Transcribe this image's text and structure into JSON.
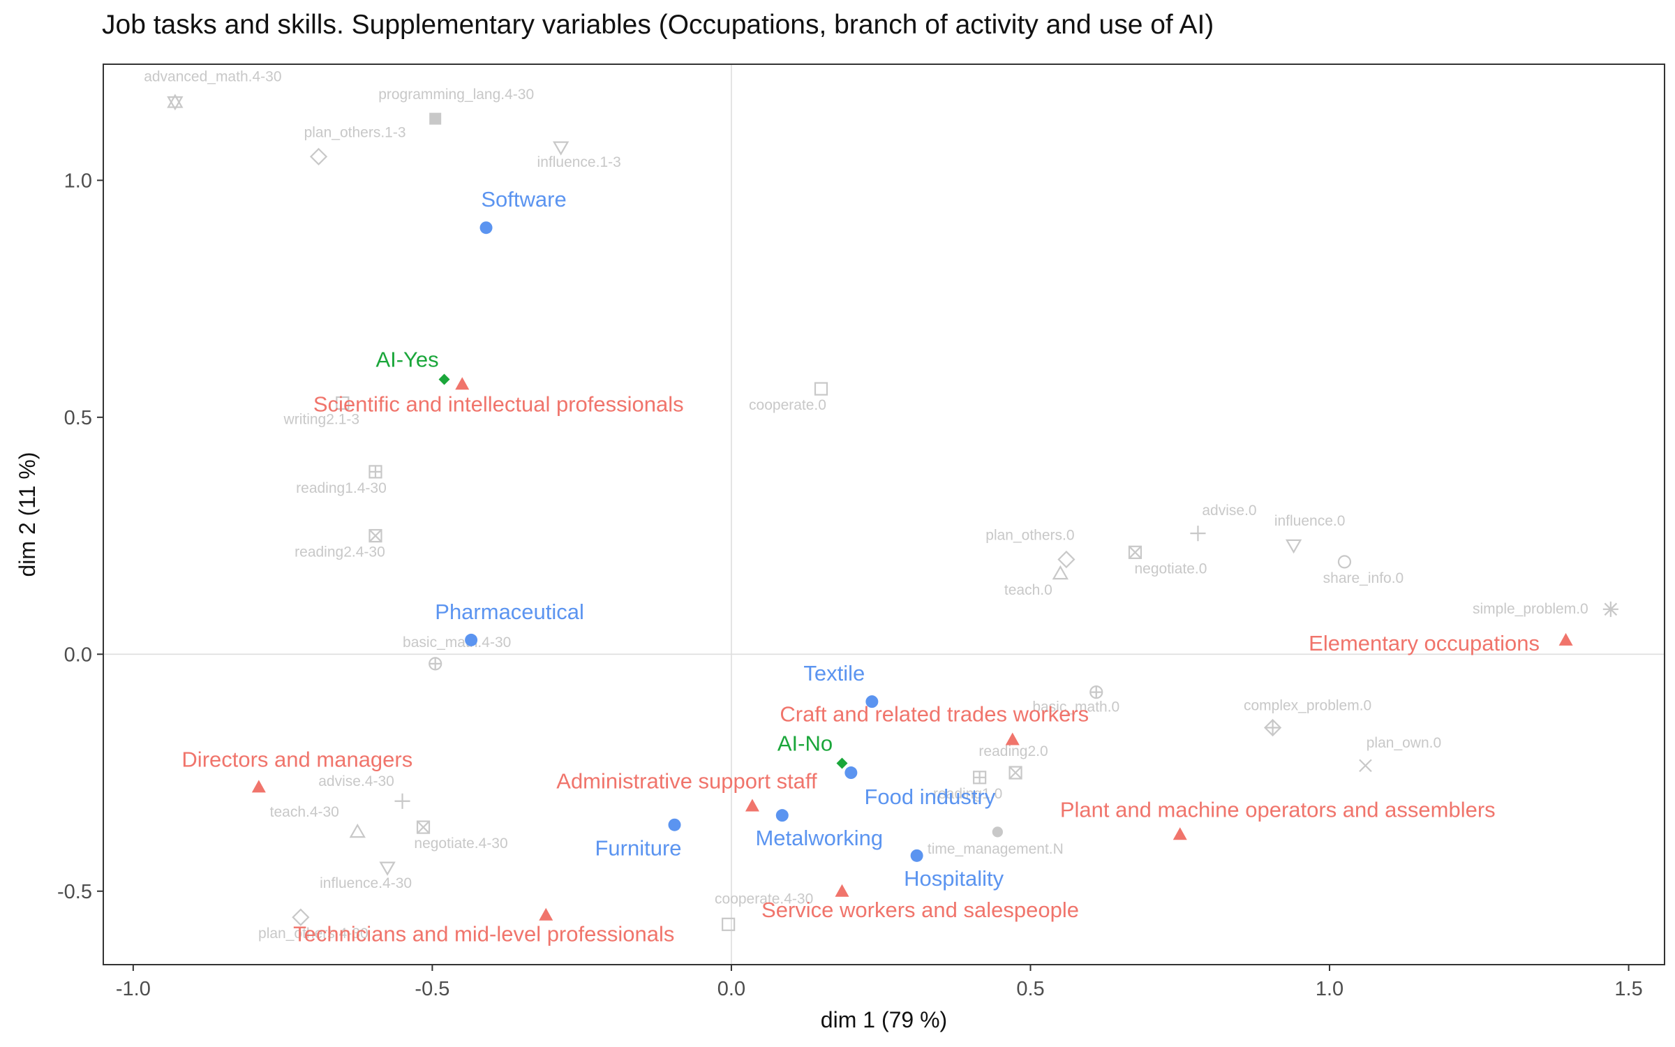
{
  "chart_data": {
    "type": "scatter",
    "title": "Job tasks and skills. Supplementary variables (Occupations, branch of activity and use of AI)",
    "xlabel": "dim 1 (79 %)",
    "ylabel": "dim 2 (11 %)",
    "xlim": [
      -1.05,
      1.56
    ],
    "ylim": [
      -0.655,
      1.245
    ],
    "xticks": [
      -1.0,
      -0.5,
      0.0,
      0.5,
      1.0,
      1.5
    ],
    "xtick_labels": [
      "-1.0",
      "-0.5",
      "0.0",
      "0.5",
      "1.0",
      "1.5"
    ],
    "yticks": [
      -0.5,
      0.0,
      0.5,
      1.0
    ],
    "ytick_labels": [
      "-0.5",
      "0.0",
      "0.5",
      "1.0"
    ],
    "grid": false,
    "reference_lines": {
      "x": 0,
      "y": 0
    },
    "colors": {
      "occupation": "#f0746b",
      "branch": "#5b94f0",
      "ai": "#1aa63a",
      "skill": "#c8c8c8"
    },
    "series": [
      {
        "group": "occupation",
        "marker": "triangle",
        "points": [
          {
            "label": "Scientific and intellectual professionals",
            "x": -0.45,
            "y": 0.57
          },
          {
            "label": "Elementary occupations",
            "x": 1.395,
            "y": 0.03
          },
          {
            "label": "Craft and related trades workers",
            "x": 0.47,
            "y": -0.18
          },
          {
            "label": "Directors and managers",
            "x": -0.79,
            "y": -0.28
          },
          {
            "label": "Administrative support staff",
            "x": 0.035,
            "y": -0.32
          },
          {
            "label": "Plant and machine operators and assemblers",
            "x": 0.75,
            "y": -0.38
          },
          {
            "label": "Service workers and salespeople",
            "x": 0.185,
            "y": -0.5
          },
          {
            "label": "Technicians and mid-level professionals",
            "x": -0.31,
            "y": -0.55
          }
        ]
      },
      {
        "group": "branch",
        "marker": "circle",
        "points": [
          {
            "label": "Software",
            "x": -0.41,
            "y": 0.9
          },
          {
            "label": "Pharmaceutical",
            "x": -0.435,
            "y": 0.03
          },
          {
            "label": "Textile",
            "x": 0.235,
            "y": -0.1
          },
          {
            "label": "Food industry",
            "x": 0.2,
            "y": -0.25
          },
          {
            "label": "Furniture",
            "x": -0.095,
            "y": -0.36
          },
          {
            "label": "Metalworking",
            "x": 0.085,
            "y": -0.34
          },
          {
            "label": "Hospitality",
            "x": 0.31,
            "y": -0.425
          }
        ]
      },
      {
        "group": "ai",
        "marker": "diamond",
        "points": [
          {
            "label": "AI-Yes",
            "x": -0.48,
            "y": 0.58
          },
          {
            "label": "AI-No",
            "x": 0.185,
            "y": -0.23
          }
        ]
      },
      {
        "group": "skill",
        "marker": "various",
        "points": [
          {
            "label": "advanced_math.4-30",
            "x": -0.93,
            "y": 1.165,
            "shape": "star6"
          },
          {
            "label": "programming_lang.4-30",
            "x": -0.495,
            "y": 1.13,
            "shape": "square-filled"
          },
          {
            "label": "plan_others.1-3",
            "x": -0.69,
            "y": 1.05,
            "shape": "diamond-open"
          },
          {
            "label": "influence.1-3",
            "x": -0.285,
            "y": 1.07,
            "shape": "triangle-down"
          },
          {
            "label": "cooperate.0",
            "x": 0.15,
            "y": 0.56,
            "shape": "square-open"
          },
          {
            "label": "writing2.1-3",
            "x": -0.65,
            "y": 0.53,
            "shape": "square-open"
          },
          {
            "label": "reading1.4-30",
            "x": -0.595,
            "y": 0.385,
            "shape": "square-plus"
          },
          {
            "label": "reading2.4-30",
            "x": -0.595,
            "y": 0.25,
            "shape": "square-x"
          },
          {
            "label": "plan_others.0",
            "x": 0.56,
            "y": 0.2,
            "shape": "diamond-open"
          },
          {
            "label": "negotiate.0",
            "x": 0.675,
            "y": 0.215,
            "shape": "square-x"
          },
          {
            "label": "advise.0",
            "x": 0.78,
            "y": 0.255,
            "shape": "plus"
          },
          {
            "label": "influence.0",
            "x": 0.94,
            "y": 0.23,
            "shape": "triangle-down"
          },
          {
            "label": "share_info.0",
            "x": 1.025,
            "y": 0.195,
            "shape": "circle-open"
          },
          {
            "label": "teach.0",
            "x": 0.55,
            "y": 0.17,
            "shape": "triangle-up"
          },
          {
            "label": "simple_problem.0",
            "x": 1.47,
            "y": 0.095,
            "shape": "asterisk"
          },
          {
            "label": "basic_math.4-30",
            "x": -0.495,
            "y": -0.02,
            "shape": "circle-plus"
          },
          {
            "label": "basic_math.0",
            "x": 0.61,
            "y": -0.08,
            "shape": "circle-plus"
          },
          {
            "label": "complex_problem.0",
            "x": 0.905,
            "y": -0.155,
            "shape": "diamond-plus"
          },
          {
            "label": "plan_own.0",
            "x": 1.06,
            "y": -0.235,
            "shape": "x"
          },
          {
            "label": "reading2.0",
            "x": 0.475,
            "y": -0.25,
            "shape": "square-x"
          },
          {
            "label": "reading1.0",
            "x": 0.415,
            "y": -0.26,
            "shape": "square-plus"
          },
          {
            "label": "time_management.N",
            "x": 0.445,
            "y": -0.375,
            "shape": "circle-filled"
          },
          {
            "label": "advise.4-30",
            "x": -0.55,
            "y": -0.31,
            "shape": "plus"
          },
          {
            "label": "teach.4-30",
            "x": -0.625,
            "y": -0.375,
            "shape": "triangle-up"
          },
          {
            "label": "negotiate.4-30",
            "x": -0.515,
            "y": -0.365,
            "shape": "square-x"
          },
          {
            "label": "influence.4-30",
            "x": -0.575,
            "y": -0.45,
            "shape": "triangle-down"
          },
          {
            "label": "plan_others.4-30",
            "x": -0.72,
            "y": -0.555,
            "shape": "diamond-open"
          },
          {
            "label": "cooperate.4-30",
            "x": -0.005,
            "y": -0.57,
            "shape": "square-open"
          }
        ]
      }
    ]
  }
}
